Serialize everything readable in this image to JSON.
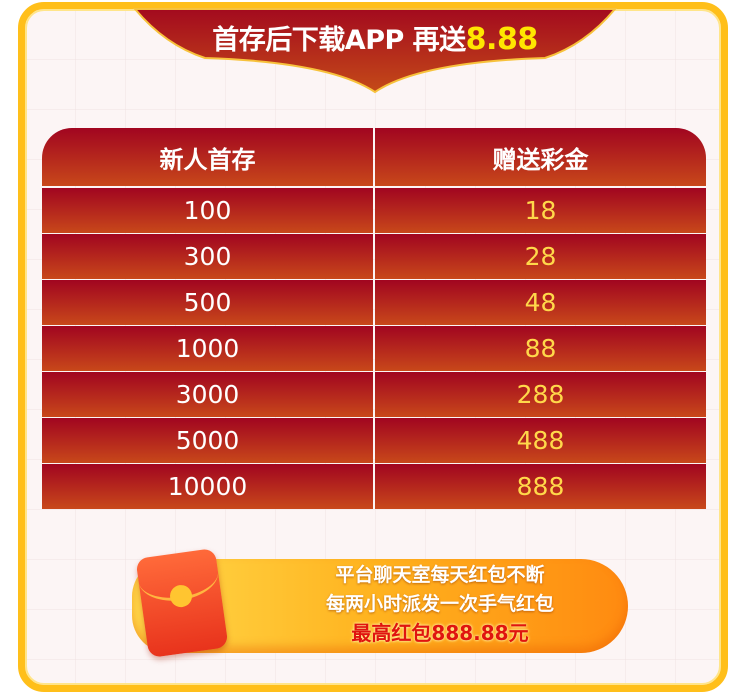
{
  "header": {
    "title": "首存后下载APP 再送",
    "amount": "8.88"
  },
  "table": {
    "columns": [
      "新人首存",
      "赠送彩金"
    ],
    "rows": [
      [
        "100",
        "18"
      ],
      [
        "300",
        "28"
      ],
      [
        "500",
        "48"
      ],
      [
        "1000",
        "88"
      ],
      [
        "3000",
        "288"
      ],
      [
        "5000",
        "488"
      ],
      [
        "10000",
        "888"
      ]
    ]
  },
  "promo": {
    "line1": "平台聊天室每天红包不断",
    "line2": "每两小时派发一次手气红包",
    "line3": "最高红包888.88元",
    "icon": "red-envelope-icon"
  },
  "colors": {
    "frame": "#ffbf1a",
    "red": "#a10520",
    "gold": "#ffe600"
  }
}
